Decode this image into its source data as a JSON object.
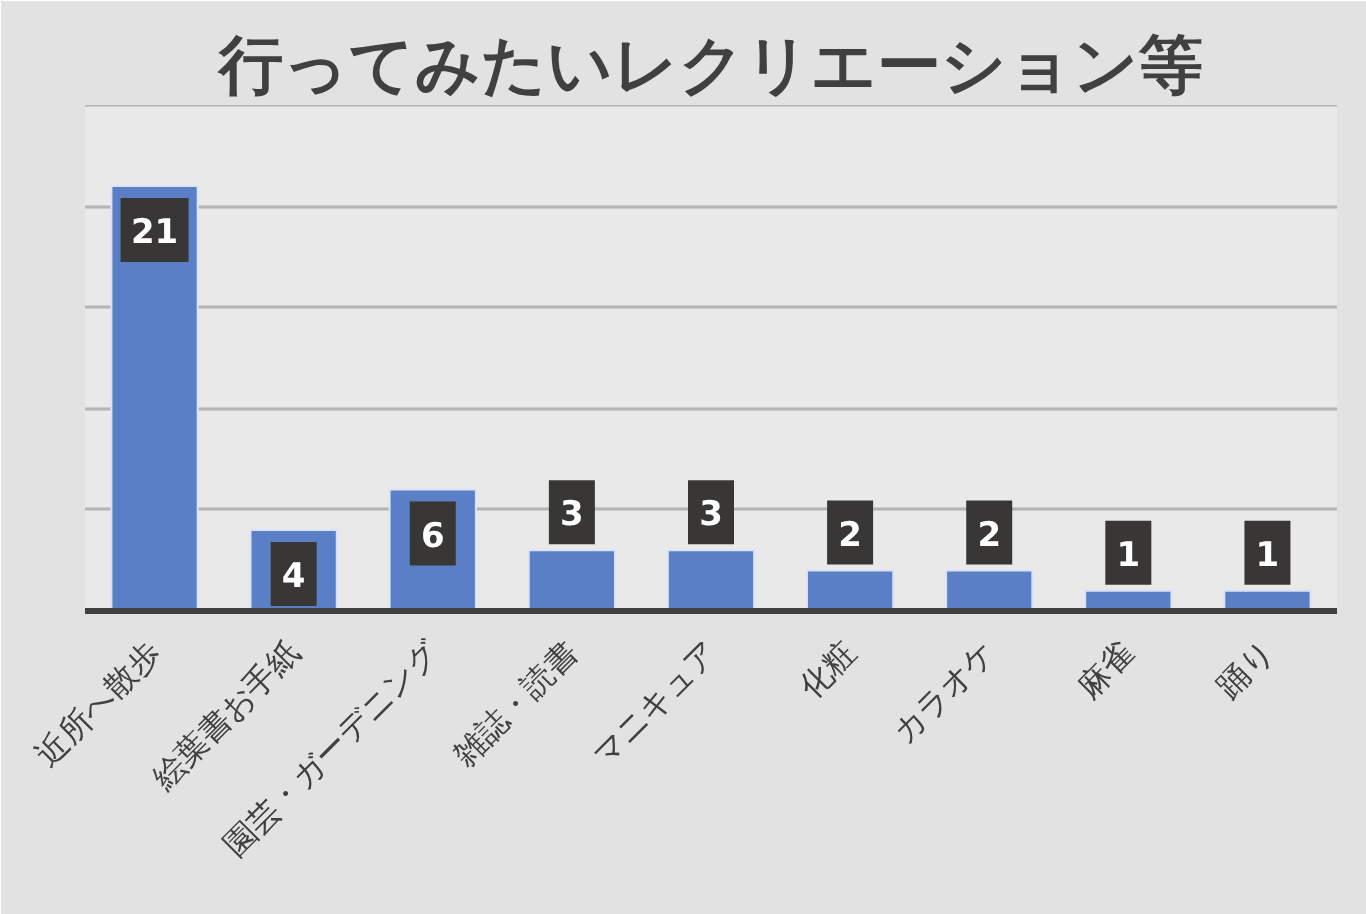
{
  "chart_data": {
    "type": "bar",
    "title": "行ってみたいレクリエーション等",
    "categories": [
      "近所へ散歩",
      "絵葉書お手紙",
      "園芸・ガーデニング",
      "雑誌・読書",
      "マニキュア",
      "化粧",
      "カラオケ",
      "麻雀",
      "踊り"
    ],
    "values": [
      21,
      4,
      6,
      3,
      3,
      2,
      2,
      1,
      1
    ],
    "color": "#5b7fc7",
    "ylim": [
      0,
      25
    ],
    "yticks": [
      {
        "value": 0,
        "label": null
      },
      {
        "value": 5,
        "label": null
      },
      {
        "value": 10,
        "label": null
      },
      {
        "value": 15,
        "label": null
      },
      {
        "value": 20,
        "label": null
      },
      {
        "value": 25,
        "label": null
      }
    ],
    "grid": "y",
    "data_labels": true,
    "tick_labels": "x"
  }
}
